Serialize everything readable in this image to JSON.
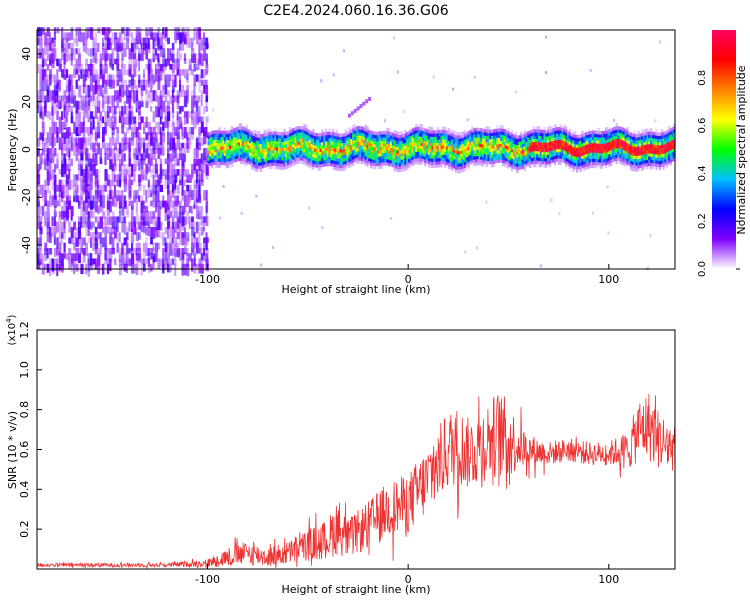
{
  "figure": {
    "title": "C2E4.2024.060.16.36.G06"
  },
  "colorbar": {
    "label": "Normalized spectral amplitude",
    "range": [
      0,
      1
    ],
    "ticks": [
      "0.0",
      "0.2",
      "0.4",
      "0.6",
      "0.8"
    ],
    "tick_values": [
      0.0,
      0.2,
      0.4,
      0.6,
      0.8
    ],
    "colors": [
      "#ffffff",
      "#8000ff",
      "#0000ff",
      "#00bfff",
      "#00ff00",
      "#ffff00",
      "#ff8000",
      "#ff0000",
      "#ff0060"
    ]
  },
  "chart_data": [
    {
      "type": "heatmap",
      "xlabel": "Height of straight line (km)",
      "ylabel": "Frequency (Hz)",
      "xlim": [
        -185,
        133
      ],
      "ylim": [
        -50,
        50
      ],
      "xticks": [
        -100,
        0,
        100
      ],
      "xtick_labels": [
        "-100",
        "0",
        "100"
      ],
      "yticks": [
        -40,
        -20,
        0,
        20,
        40
      ],
      "ytick_labels": [
        "-40",
        "-20",
        "0",
        "20",
        "40"
      ],
      "grid": false,
      "features": {
        "noise_region_x": [
          -185,
          -100
        ],
        "signal_band_x": [
          -100,
          133
        ],
        "signal_center_frequency": 0,
        "signal_halfwidth_hz": 5,
        "secondary_trace": {
          "x": [
            -30,
            -20
          ],
          "y": [
            15,
            22
          ]
        }
      }
    },
    {
      "type": "line",
      "xlabel": "Height of straight line (km)",
      "ylabel": "SNR (10 * v/v)",
      "y_multiplier": "(x10^4)",
      "xlim": [
        -185,
        133
      ],
      "ylim": [
        0,
        1.2
      ],
      "xticks": [
        -100,
        0,
        100
      ],
      "xtick_labels": [
        "-100",
        "0",
        "100"
      ],
      "yticks": [
        0.2,
        0.4,
        0.6,
        0.8,
        1.0,
        1.2
      ],
      "ytick_labels": [
        "0.2",
        "0.4",
        "0.6",
        "0.8",
        "1.0",
        "1.2"
      ],
      "color": "#ee3333",
      "series": [
        {
          "x": [
            -185,
            -150,
            -120,
            -100,
            -90,
            -80,
            -70,
            -60,
            -50,
            -40,
            -35,
            -30,
            -20,
            -10,
            0,
            10,
            20,
            25,
            30,
            40,
            45,
            50,
            55,
            60,
            70,
            80,
            90,
            100,
            110,
            115,
            120,
            125,
            133
          ],
          "y": [
            0.02,
            0.02,
            0.02,
            0.03,
            0.06,
            0.08,
            0.06,
            0.08,
            0.12,
            0.15,
            0.22,
            0.15,
            0.22,
            0.3,
            0.33,
            0.45,
            0.6,
            0.62,
            0.58,
            0.65,
            0.68,
            0.65,
            0.62,
            0.6,
            0.58,
            0.6,
            0.58,
            0.58,
            0.6,
            0.7,
            0.72,
            0.65,
            0.6
          ],
          "spread": [
            0.01,
            0.01,
            0.01,
            0.02,
            0.05,
            0.06,
            0.05,
            0.06,
            0.08,
            0.1,
            0.15,
            0.1,
            0.12,
            0.14,
            0.15,
            0.18,
            0.2,
            0.2,
            0.18,
            0.2,
            0.22,
            0.2,
            0.12,
            0.08,
            0.06,
            0.06,
            0.06,
            0.06,
            0.1,
            0.16,
            0.18,
            0.15,
            0.12
          ]
        }
      ]
    }
  ]
}
